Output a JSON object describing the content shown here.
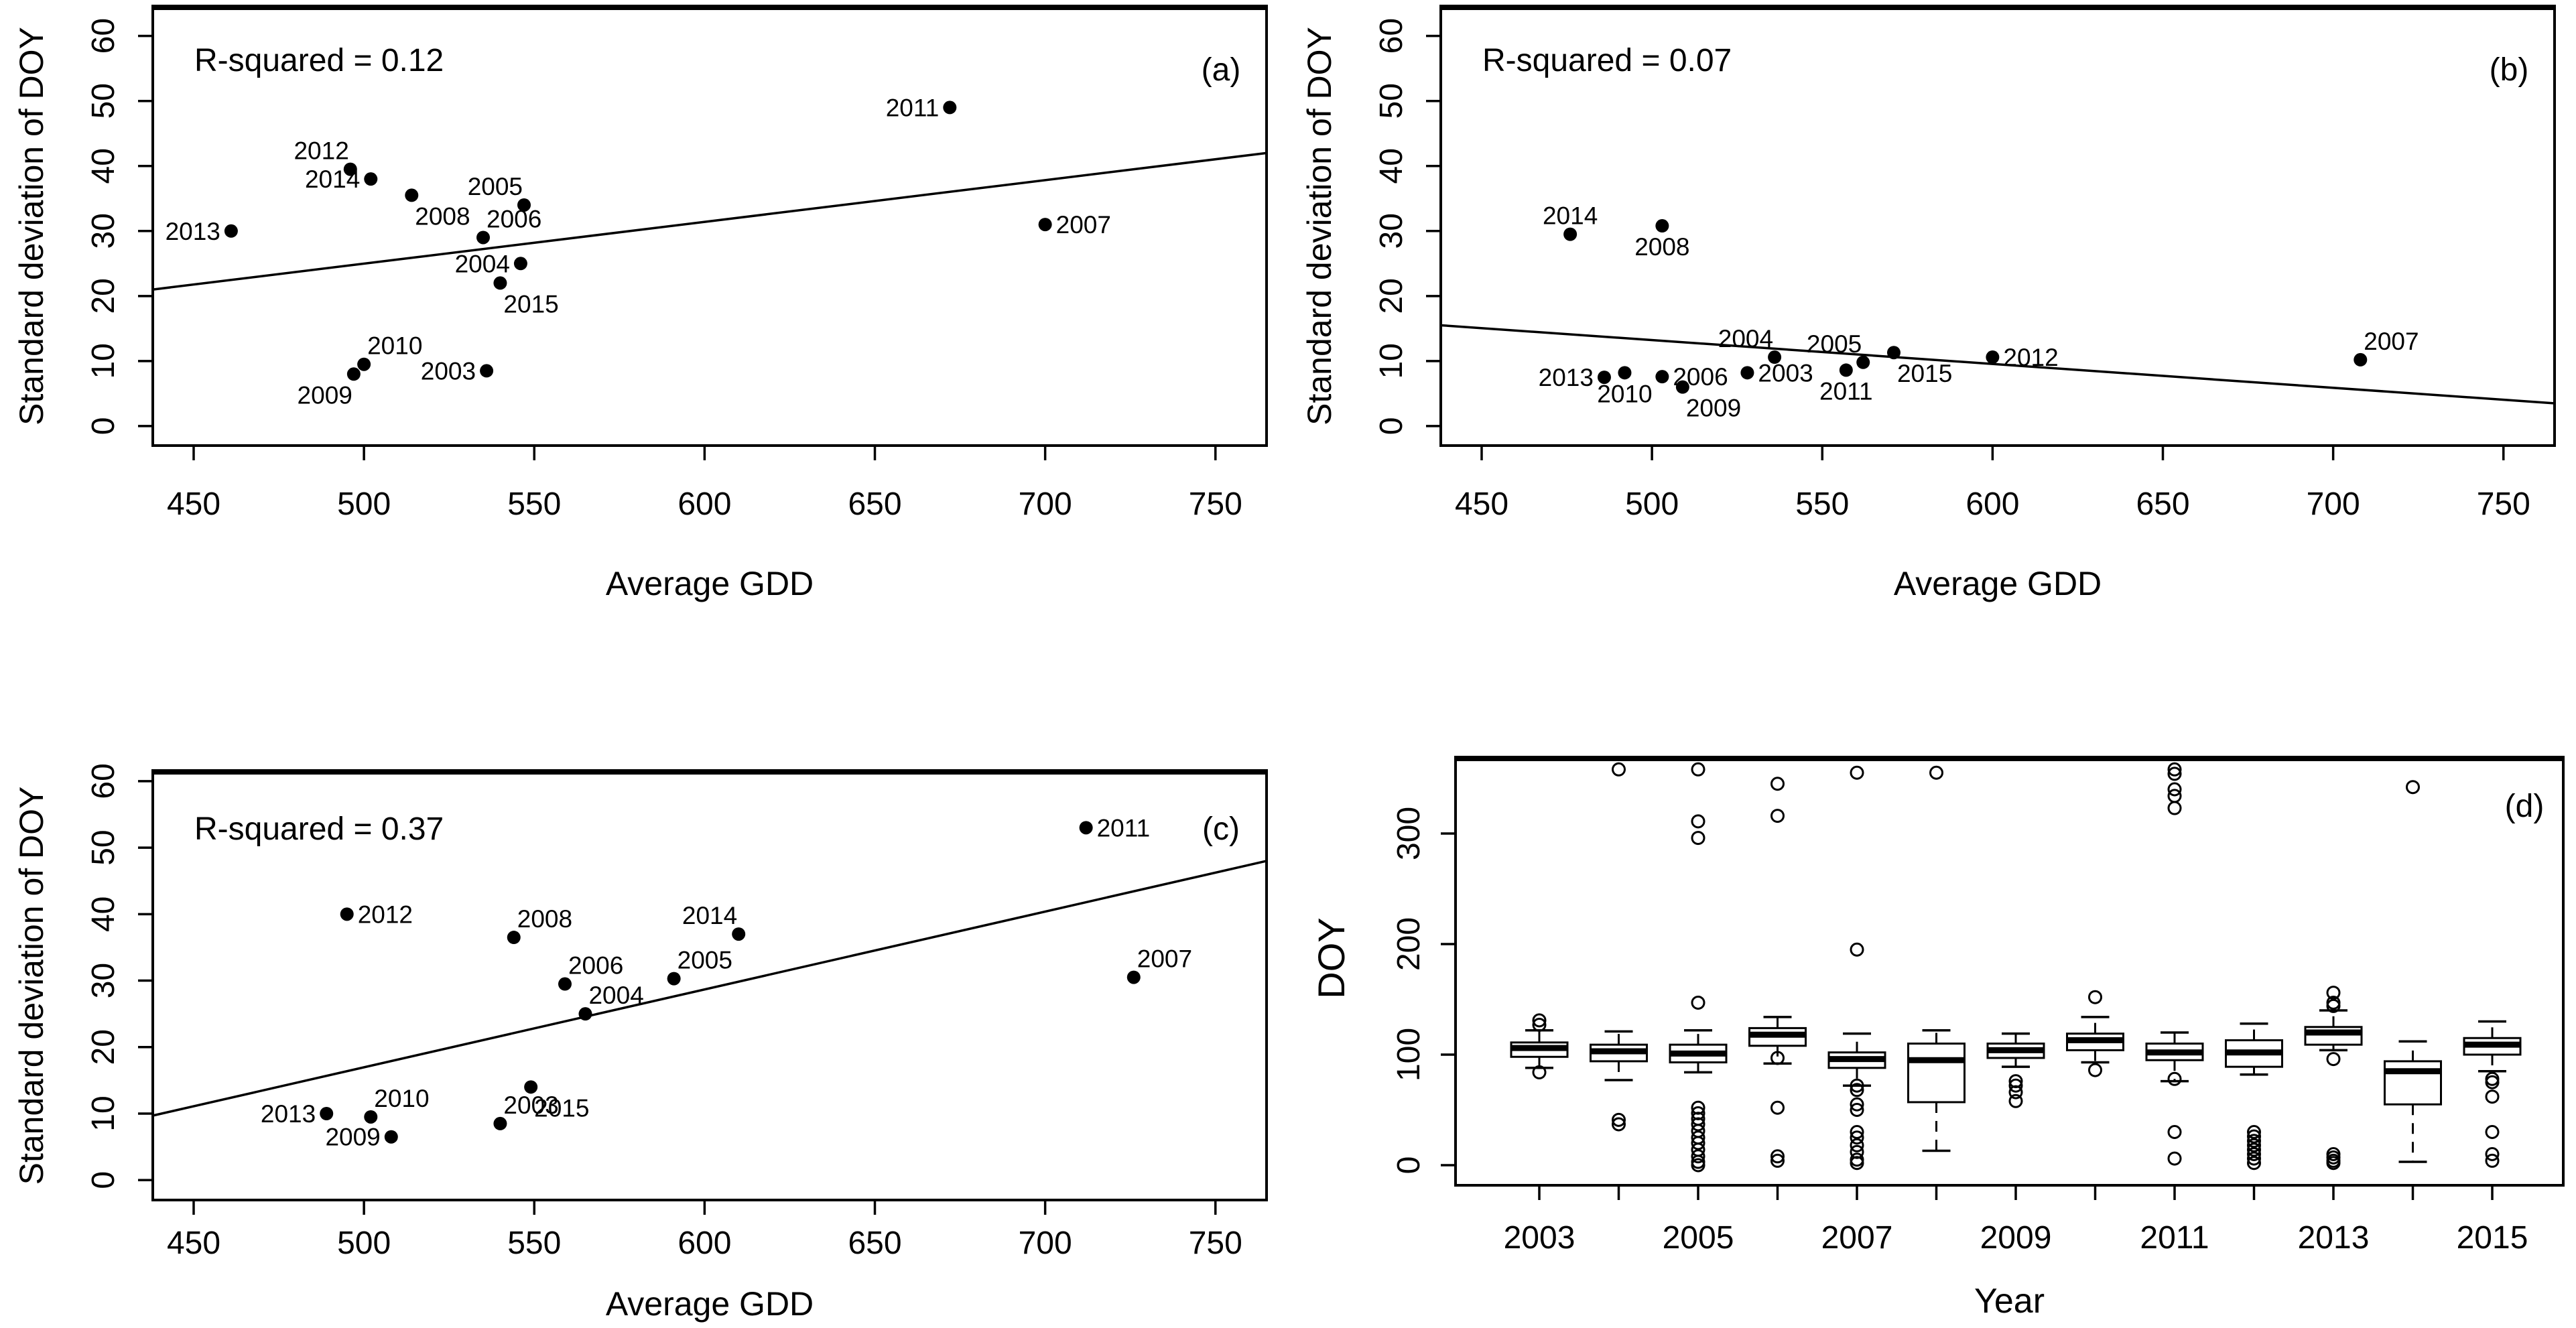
{
  "figure": {
    "background": "#ffffff",
    "foreground": "#000000"
  },
  "chart_data": [
    {
      "type": "scatter",
      "panel_letter": "(a)",
      "annotation": "R-squared = 0.12",
      "xlabel": "Average GDD",
      "ylabel": "Standard deviation of DOY",
      "xlim": [
        438,
        765
      ],
      "ylim": [
        -3,
        64.5
      ],
      "x_ticks": [
        450,
        500,
        550,
        600,
        650,
        700,
        750
      ],
      "y_ticks": [
        0,
        10,
        20,
        30,
        40,
        50,
        60
      ],
      "trend_line": {
        "x1": 438,
        "y1": 21,
        "x2": 765,
        "y2": 42
      },
      "points": [
        {
          "year": "2013",
          "x": 461,
          "y": 30,
          "label_pos": "left"
        },
        {
          "year": "2012",
          "x": 496,
          "y": 39.5,
          "label_pos": "above-left"
        },
        {
          "year": "2014",
          "x": 502,
          "y": 38,
          "label_pos": "left"
        },
        {
          "year": "2008",
          "x": 514,
          "y": 35.5,
          "label_pos": "below-right"
        },
        {
          "year": "2005",
          "x": 547,
          "y": 34,
          "label_pos": "above-left"
        },
        {
          "year": "2006",
          "x": 535,
          "y": 29,
          "label_pos": "above-right"
        },
        {
          "year": "2004",
          "x": 546,
          "y": 25,
          "label_pos": "left"
        },
        {
          "year": "2015",
          "x": 540,
          "y": 22,
          "label_pos": "below-right"
        },
        {
          "year": "2010",
          "x": 500,
          "y": 9.5,
          "label_pos": "above-right"
        },
        {
          "year": "2009",
          "x": 497,
          "y": 8,
          "label_pos": "below-left"
        },
        {
          "year": "2003",
          "x": 536,
          "y": 8.5,
          "label_pos": "left"
        },
        {
          "year": "2011",
          "x": 672,
          "y": 49,
          "label_pos": "left"
        },
        {
          "year": "2007",
          "x": 700,
          "y": 31,
          "label_pos": "right"
        }
      ]
    },
    {
      "type": "scatter",
      "panel_letter": "(b)",
      "annotation": "R-squared = 0.07",
      "xlabel": "Average GDD",
      "ylabel": "Standard deviation of DOY",
      "xlim": [
        438,
        765
      ],
      "ylim": [
        -3,
        64.5
      ],
      "x_ticks": [
        450,
        500,
        550,
        600,
        650,
        700,
        750
      ],
      "y_ticks": [
        0,
        10,
        20,
        30,
        40,
        50,
        60
      ],
      "trend_line": {
        "x1": 438,
        "y1": 15.5,
        "x2": 765,
        "y2": 3.5
      },
      "points": [
        {
          "year": "2014",
          "x": 476,
          "y": 29.5,
          "label_pos": "above"
        },
        {
          "year": "2008",
          "x": 503,
          "y": 30.8,
          "label_pos": "below"
        },
        {
          "year": "2013",
          "x": 486,
          "y": 7.5,
          "label_pos": "left"
        },
        {
          "year": "2010",
          "x": 492,
          "y": 8.2,
          "label_pos": "below"
        },
        {
          "year": "2006",
          "x": 503,
          "y": 7.6,
          "label_pos": "right"
        },
        {
          "year": "2009",
          "x": 509,
          "y": 6,
          "label_pos": "below-right"
        },
        {
          "year": "2003",
          "x": 528,
          "y": 8.2,
          "label_pos": "right"
        },
        {
          "year": "2004",
          "x": 536,
          "y": 10.6,
          "label_pos": "above-left"
        },
        {
          "year": "2011",
          "x": 557,
          "y": 8.6,
          "label_pos": "below"
        },
        {
          "year": "2005",
          "x": 562,
          "y": 9.8,
          "label_pos": "above-left"
        },
        {
          "year": "2015",
          "x": 571,
          "y": 11.3,
          "label_pos": "below-right"
        },
        {
          "year": "2012",
          "x": 600,
          "y": 10.6,
          "label_pos": "right"
        },
        {
          "year": "2007",
          "x": 708,
          "y": 10.2,
          "label_pos": "above-right"
        }
      ]
    },
    {
      "type": "scatter",
      "panel_letter": "(c)",
      "annotation": "R-squared = 0.37",
      "xlabel": "Average GDD",
      "ylabel": "Standard deviation of DOY",
      "xlim": [
        438,
        765
      ],
      "ylim": [
        -3,
        61.5
      ],
      "x_ticks": [
        450,
        500,
        550,
        600,
        650,
        700,
        750
      ],
      "y_ticks": [
        0,
        10,
        20,
        30,
        40,
        50,
        60
      ],
      "trend_line": {
        "x1": 438,
        "y1": 9.7,
        "x2": 765,
        "y2": 48
      },
      "points": [
        {
          "year": "2012",
          "x": 495,
          "y": 40,
          "label_pos": "right"
        },
        {
          "year": "2008",
          "x": 544,
          "y": 36.5,
          "label_pos": "above-right"
        },
        {
          "year": "2014",
          "x": 610,
          "y": 37,
          "label_pos": "above-left"
        },
        {
          "year": "2006",
          "x": 559,
          "y": 29.5,
          "label_pos": "above-right"
        },
        {
          "year": "2005",
          "x": 591,
          "y": 30.3,
          "label_pos": "above-right"
        },
        {
          "year": "2004",
          "x": 565,
          "y": 25,
          "label_pos": "above-right"
        },
        {
          "year": "2011",
          "x": 712,
          "y": 53,
          "label_pos": "right"
        },
        {
          "year": "2007",
          "x": 726,
          "y": 30.5,
          "label_pos": "above-right"
        },
        {
          "year": "2015",
          "x": 549,
          "y": 14,
          "label_pos": "below-right"
        },
        {
          "year": "2013",
          "x": 489,
          "y": 10,
          "label_pos": "left"
        },
        {
          "year": "2010",
          "x": 502,
          "y": 9.5,
          "label_pos": "above-right"
        },
        {
          "year": "2009",
          "x": 508,
          "y": 6.5,
          "label_pos": "left"
        },
        {
          "year": "2003",
          "x": 540,
          "y": 8.5,
          "label_pos": "above-right"
        }
      ]
    },
    {
      "type": "boxplot",
      "panel_letter": "(d)",
      "xlabel": "Year",
      "ylabel": "DOY",
      "y_ticks": [
        0,
        100,
        200,
        300
      ],
      "x_tick_labels": [
        "2003",
        "2005",
        "2007",
        "2009",
        "2011",
        "2013",
        "2015"
      ],
      "boxes": [
        {
          "year": "2003",
          "whisker_low": 88,
          "q1": 98,
          "median": 106,
          "q3": 111,
          "whisker_high": 122,
          "outliers": [
            131,
            127,
            84
          ]
        },
        {
          "year": "2004",
          "whisker_low": 77,
          "q1": 94,
          "median": 103,
          "q3": 109,
          "whisker_high": 121,
          "outliers": [
            41,
            37,
            358
          ]
        },
        {
          "year": "2005",
          "whisker_low": 84,
          "q1": 93,
          "median": 101,
          "q3": 109,
          "whisker_high": 122,
          "outliers": [
            147,
            296,
            311,
            358,
            52,
            47,
            42,
            37,
            31,
            25,
            20,
            14,
            8,
            3,
            0
          ]
        },
        {
          "year": "2006",
          "whisker_low": 92,
          "q1": 108,
          "median": 118,
          "q3": 124,
          "whisker_high": 134,
          "outliers": [
            345,
            316,
            97,
            52,
            8,
            4
          ]
        },
        {
          "year": "2007",
          "whisker_low": 72,
          "q1": 88,
          "median": 96,
          "q3": 102,
          "whisker_high": 119,
          "outliers": [
            355,
            195,
            72,
            68,
            55,
            50,
            30,
            25,
            18,
            12,
            5,
            2
          ]
        },
        {
          "year": "2008",
          "whisker_low": 13,
          "q1": 57,
          "median": 95,
          "q3": 110,
          "whisker_high": 122,
          "outliers": [
            355
          ]
        },
        {
          "year": "2009",
          "whisker_low": 89,
          "q1": 97,
          "median": 104,
          "q3": 110,
          "whisker_high": 119,
          "outliers": [
            76,
            72,
            66,
            58
          ]
        },
        {
          "year": "2010",
          "whisker_low": 93,
          "q1": 104,
          "median": 113,
          "q3": 119,
          "whisker_high": 134,
          "outliers": [
            152,
            86
          ]
        },
        {
          "year": "2011",
          "whisker_low": 76,
          "q1": 95,
          "median": 102,
          "q3": 110,
          "whisker_high": 120,
          "outliers": [
            358,
            354,
            340,
            334,
            323,
            78,
            30,
            6
          ]
        },
        {
          "year": "2012",
          "whisker_low": 82,
          "q1": 89,
          "median": 102,
          "q3": 113,
          "whisker_high": 128,
          "outliers": [
            30,
            26,
            22,
            18,
            14,
            10,
            6,
            2
          ]
        },
        {
          "year": "2013",
          "whisker_low": 104,
          "q1": 109,
          "median": 120,
          "q3": 125,
          "whisker_high": 140,
          "outliers": [
            156,
            147,
            144,
            96,
            10,
            7,
            4,
            2
          ]
        },
        {
          "year": "2014",
          "whisker_low": 3,
          "q1": 55,
          "median": 85,
          "q3": 94,
          "whisker_high": 112,
          "outliers": [
            342
          ]
        },
        {
          "year": "2015",
          "whisker_low": 85,
          "q1": 100,
          "median": 109,
          "q3": 115,
          "whisker_high": 130,
          "outliers": [
            78,
            75,
            62,
            30,
            10,
            4
          ]
        }
      ]
    }
  ]
}
